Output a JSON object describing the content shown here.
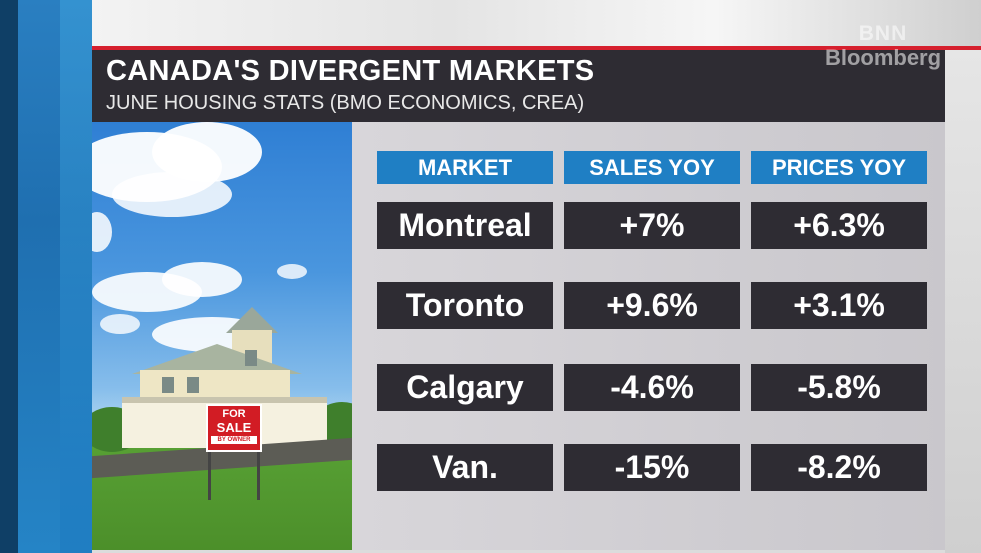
{
  "broadcast": {
    "title": "CANADA'S DIVERGENT MARKETS",
    "subtitle": "JUNE HOUSING STATS (BMO ECONOMICS, CREA)",
    "logo": {
      "line1": "BNN",
      "line2": "Bloomberg"
    }
  },
  "photo": {
    "sign": {
      "line1": "FOR",
      "line2": "SALE",
      "line3": "BY OWNER",
      "color": "#d21c24"
    }
  },
  "table": {
    "headers": [
      "MARKET",
      "SALES YOY",
      "PRICES YOY"
    ],
    "rows": [
      {
        "market": "Montreal",
        "sales_yoy": "+7%",
        "prices_yoy": "+6.3%"
      },
      {
        "market": "Toronto",
        "sales_yoy": "+9.6%",
        "prices_yoy": "+3.1%"
      },
      {
        "market": "Calgary",
        "sales_yoy": "-4.6%",
        "prices_yoy": "-5.8%"
      },
      {
        "market": "Van.",
        "sales_yoy": "-15%",
        "prices_yoy": "-8.2%"
      }
    ]
  },
  "colors": {
    "accent_red": "#d6202e",
    "header_blue": "#1f7fc4",
    "cell_dark": "#2e2c33"
  }
}
